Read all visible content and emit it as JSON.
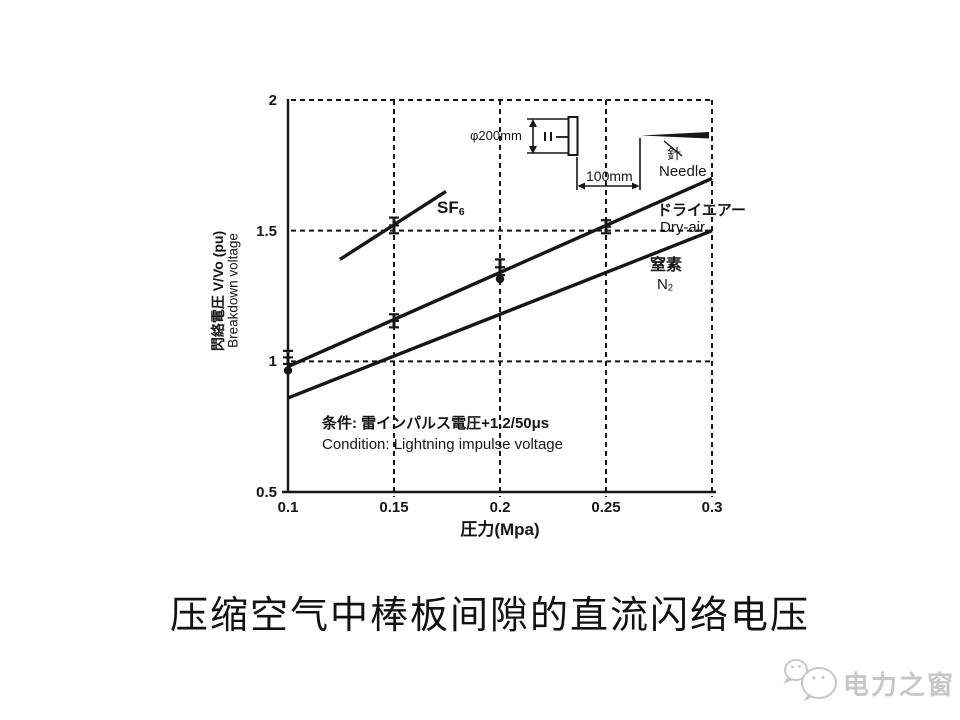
{
  "page": {
    "title": "压缩空气中棒板间隙的直流闪络电压",
    "watermark": {
      "text": "电力之窗",
      "color": "#c7c7c7"
    }
  },
  "chart": {
    "y_axis_label_jp": "閃絡電圧 V/Vo (pu)",
    "y_axis_label_en": "Breakdown voltage",
    "x_axis_label": "圧力(Mpa)",
    "condition_jp": "条件: 雷インパルス電圧+1.2/50μs",
    "condition_en": "Condition: Lightning impulse voltage",
    "labels": {
      "sf6_base": "SF",
      "sf6_sub": "6",
      "dryair_jp": "ドライエアー",
      "dryair_en": "Dry-air",
      "n2_jp": "窒素",
      "n2_base": "N",
      "n2_sub": "2"
    },
    "inset": {
      "diameter": "φ200mm",
      "gap": "100mm",
      "needle_jp": "針",
      "needle_en": "Needle"
    }
  },
  "chart_data": {
    "type": "line",
    "title": "",
    "xlabel": "圧力(Mpa)",
    "ylabel": "閃絡電圧 V/Vo (pu) / Breakdown voltage",
    "xlim": [
      0.1,
      0.3
    ],
    "ylim": [
      0.5,
      2.0
    ],
    "grid": "dashed",
    "x_ticks": [
      {
        "v": 0.1,
        "label": "0.1"
      },
      {
        "v": 0.15,
        "label": "0.15"
      },
      {
        "v": 0.2,
        "label": "0.2"
      },
      {
        "v": 0.25,
        "label": "0.25"
      },
      {
        "v": 0.3,
        "label": "0.3"
      }
    ],
    "y_ticks": [
      {
        "v": 2,
        "label": "2"
      },
      {
        "v": 1.5,
        "label": "1.5"
      },
      {
        "v": 1,
        "label": "1"
      },
      {
        "v": 0.5,
        "label": "0.5"
      }
    ],
    "x_gridlines": [
      0.15,
      0.2,
      0.25,
      0.3
    ],
    "y_gridlines": [
      1.0,
      1.5,
      2.0
    ],
    "condition": [
      "条件: 雷インパルス電圧+1.2/50μs",
      "Condition: Lightning impulse voltage"
    ],
    "series": [
      {
        "name": "SF6",
        "line": [
          [
            0.1245,
            1.39
          ],
          [
            0.1745,
            1.65
          ]
        ],
        "points": [
          {
            "x": 0.15,
            "y": 1.52,
            "err_low": 1.49,
            "err_high": 1.55
          }
        ]
      },
      {
        "name": "Dry-air",
        "line": [
          [
            0.1,
            0.98
          ],
          [
            0.3,
            1.7
          ]
        ],
        "points": [
          {
            "x": 0.1,
            "y": 1.01,
            "err_low": 0.99,
            "err_high": 1.04,
            "dot": 0.965
          },
          {
            "x": 0.15,
            "y": 1.16,
            "err_low": 1.13,
            "err_high": 1.18
          },
          {
            "x": 0.2,
            "y": 1.36,
            "err_low": 1.33,
            "err_high": 1.39,
            "dot": 1.315
          },
          {
            "x": 0.25,
            "y": 1.52,
            "err_low": 1.49,
            "err_high": 1.54
          }
        ]
      },
      {
        "name": "N2",
        "line": [
          [
            0.1,
            0.86
          ],
          [
            0.3,
            1.5
          ]
        ],
        "points": []
      }
    ]
  }
}
